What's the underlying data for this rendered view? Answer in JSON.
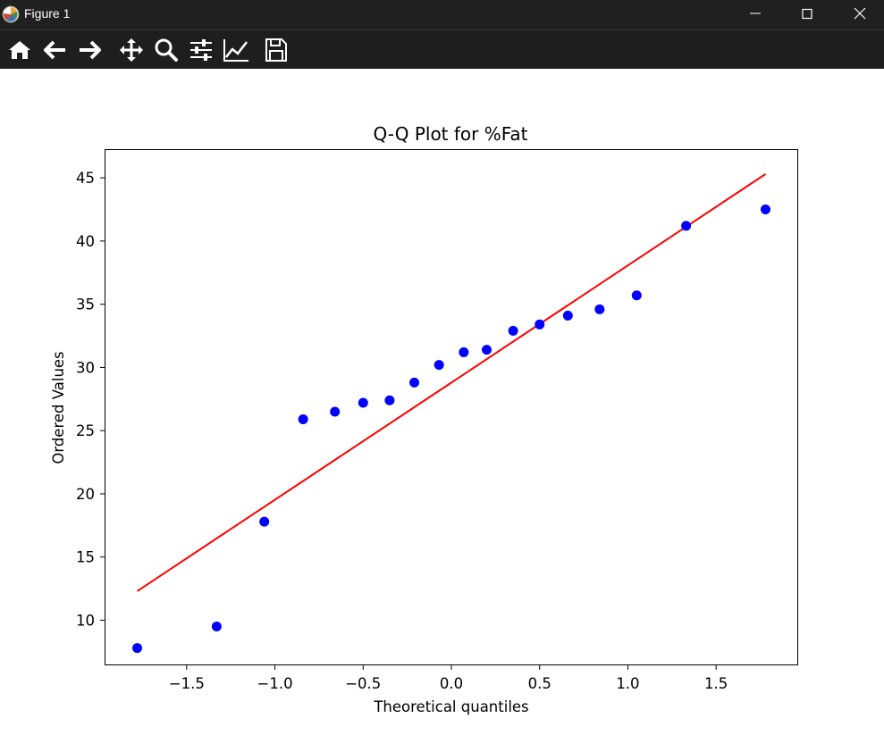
{
  "window": {
    "title": "Figure 1",
    "controls": [
      "minimize",
      "maximize",
      "close"
    ]
  },
  "toolbar": {
    "tools": [
      "home-icon",
      "back-icon",
      "forward-icon",
      "pan-icon",
      "zoom-icon",
      "configure-subplots-icon",
      "edit-axis-icon",
      "save-icon"
    ]
  },
  "colors": {
    "titlebar": "#202020",
    "toolbar": "#1e1e1e",
    "points": "#0000ff",
    "fit_line": "#ff0000"
  },
  "chart_data": {
    "type": "scatter",
    "title": "Q-Q Plot for %Fat",
    "xlabel": "Theoretical quantiles",
    "ylabel": "Ordered Values",
    "xlim": [
      -1.96,
      1.96
    ],
    "ylim": [
      6.5,
      47.2
    ],
    "xticks": [
      -1.5,
      -1.0,
      -0.5,
      0.0,
      0.5,
      1.0,
      1.5
    ],
    "xtick_labels": [
      "−1.5",
      "−1.0",
      "−0.5",
      "0.0",
      "0.5",
      "1.0",
      "1.5"
    ],
    "yticks": [
      10,
      15,
      20,
      25,
      30,
      35,
      40,
      45
    ],
    "ytick_labels": [
      "10",
      "15",
      "20",
      "25",
      "30",
      "35",
      "40",
      "45"
    ],
    "grid": false,
    "series": [
      {
        "kind": "points",
        "color": "#0000ff",
        "x": [
          -1.78,
          -1.33,
          -1.06,
          -0.84,
          -0.66,
          -0.5,
          -0.35,
          -0.21,
          -0.07,
          0.07,
          0.2,
          0.35,
          0.5,
          0.66,
          0.84,
          1.05,
          1.33,
          1.78
        ],
        "y": [
          7.8,
          9.5,
          17.8,
          25.9,
          26.5,
          27.2,
          27.4,
          28.8,
          30.2,
          31.2,
          31.4,
          32.9,
          33.4,
          34.1,
          34.6,
          35.7,
          41.2,
          42.5
        ]
      },
      {
        "kind": "line",
        "color": "#ff0000",
        "x": [
          -1.78,
          1.78
        ],
        "y": [
          12.3,
          45.3
        ]
      }
    ]
  }
}
